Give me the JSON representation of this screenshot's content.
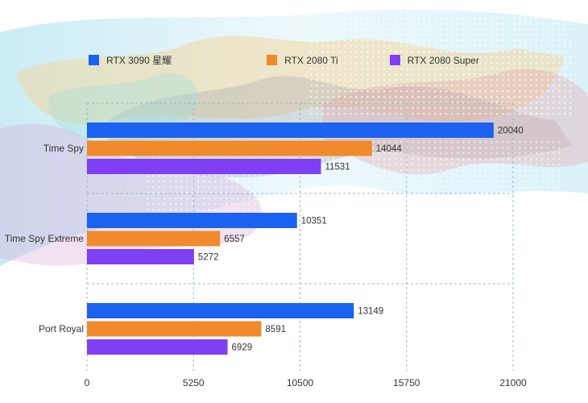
{
  "chart_data": {
    "type": "bar",
    "orientation": "horizontal",
    "categories": [
      "Time Spy",
      "Time Spy Extreme",
      "Port Royal"
    ],
    "series": [
      {
        "name": "RTX 3090 星耀",
        "color": "#1b62f0",
        "values": [
          20040,
          10351,
          13149
        ]
      },
      {
        "name": "RTX 2080 Ti",
        "color": "#f08a2c",
        "values": [
          14044,
          6557,
          8591
        ]
      },
      {
        "name": "RTX 2080 Super",
        "color": "#7f3ff5",
        "values": [
          11531,
          5272,
          6929
        ]
      }
    ],
    "x_ticks": [
      "0",
      "5250",
      "10500",
      "15750",
      "21000"
    ],
    "xlim": [
      0,
      21000
    ],
    "grid": true,
    "grid_style": "dashed",
    "legend_position": "top"
  }
}
